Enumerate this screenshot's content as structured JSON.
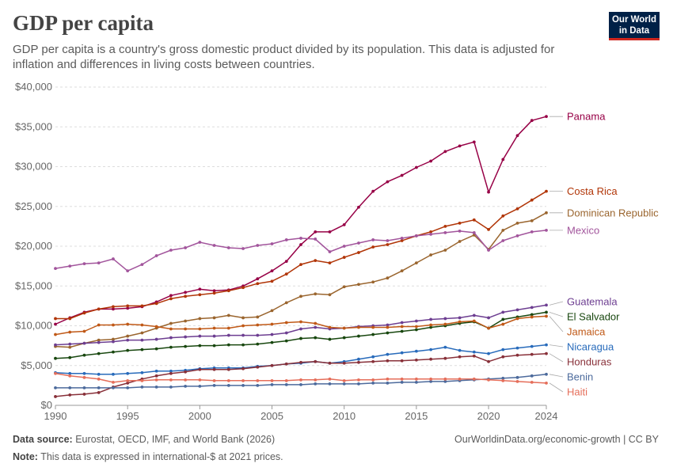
{
  "header": {
    "title": "GDP per capita",
    "subtitle": "GDP per capita is a country's gross domestic product divided by its population. This data is adjusted for inflation and differences in living costs between countries.",
    "logo_line1": "Our World",
    "logo_line2": "in Data"
  },
  "footer": {
    "source_label": "Data source:",
    "source_text": "Eurostat, OECD, IMF, and World Bank (2026)",
    "credit": "OurWorldinData.org/economic-growth | CC BY",
    "note_label": "Note:",
    "note_text": "This data is expressed in international-$ at 2021 prices."
  },
  "chart_data": {
    "type": "line",
    "x": [
      1990,
      1991,
      1992,
      1993,
      1994,
      1995,
      1996,
      1997,
      1998,
      1999,
      2000,
      2001,
      2002,
      2003,
      2004,
      2005,
      2006,
      2007,
      2008,
      2009,
      2010,
      2011,
      2012,
      2013,
      2014,
      2015,
      2016,
      2017,
      2018,
      2019,
      2020,
      2021,
      2022,
      2023,
      2024
    ],
    "xlim": [
      1990,
      2024
    ],
    "ylim": [
      0,
      40000
    ],
    "yticks": [
      0,
      5000,
      10000,
      15000,
      20000,
      25000,
      30000,
      35000,
      40000
    ],
    "yticklabels": [
      "$0",
      "$5,000",
      "$10,000",
      "$15,000",
      "$20,000",
      "$25,000",
      "$30,000",
      "$35,000",
      "$40,000"
    ],
    "xticks": [
      1990,
      1995,
      2000,
      2005,
      2010,
      2015,
      2020,
      2024
    ],
    "xticklabels": [
      "1990",
      "1995",
      "2000",
      "2005",
      "2010",
      "2015",
      "2020",
      "2024"
    ],
    "grid": "horizontal dashed",
    "legend": "labels at line ends, right",
    "series": [
      {
        "name": "Panama",
        "color": "#970046",
        "values": [
          10200,
          11000,
          11700,
          12100,
          12100,
          12200,
          12400,
          13000,
          13800,
          14200,
          14600,
          14400,
          14500,
          15000,
          15900,
          16900,
          18100,
          20200,
          21800,
          21800,
          22700,
          24900,
          26900,
          28100,
          28900,
          29900,
          30700,
          31900,
          32600,
          33100,
          26800,
          30900,
          33900,
          35800,
          36300
        ]
      },
      {
        "name": "Costa Rica",
        "color": "#b13507",
        "values": [
          10900,
          10900,
          11600,
          12100,
          12400,
          12500,
          12500,
          12800,
          13400,
          13700,
          13900,
          14100,
          14400,
          14800,
          15300,
          15600,
          16500,
          17700,
          18200,
          17900,
          18600,
          19200,
          19900,
          20200,
          20700,
          21300,
          21800,
          22500,
          22900,
          23300,
          22100,
          23800,
          24700,
          25800,
          26900
        ]
      },
      {
        "name": "Dominican Republic",
        "color": "#9a652e",
        "values": [
          7400,
          7300,
          7800,
          8200,
          8300,
          8700,
          9100,
          9700,
          10300,
          10600,
          10900,
          11000,
          11300,
          11000,
          11100,
          11900,
          12900,
          13700,
          14000,
          13900,
          14900,
          15200,
          15500,
          16000,
          16900,
          17900,
          18900,
          19500,
          20600,
          21400,
          19600,
          22000,
          22900,
          23200,
          24200
        ]
      },
      {
        "name": "Mexico",
        "color": "#a2559c",
        "values": [
          17200,
          17500,
          17800,
          17900,
          18400,
          16900,
          17700,
          18800,
          19500,
          19800,
          20500,
          20100,
          19800,
          19700,
          20100,
          20300,
          20800,
          21000,
          20900,
          19300,
          20000,
          20400,
          20800,
          20700,
          21000,
          21300,
          21500,
          21700,
          21900,
          21700,
          19500,
          20700,
          21300,
          21800,
          22000
        ]
      },
      {
        "name": "Guatemala",
        "color": "#6d3e91",
        "values": [
          7600,
          7700,
          7800,
          7900,
          8000,
          8200,
          8200,
          8300,
          8500,
          8600,
          8700,
          8700,
          8800,
          8800,
          8800,
          8900,
          9100,
          9600,
          9800,
          9600,
          9700,
          9900,
          10000,
          10100,
          10400,
          10600,
          10800,
          10900,
          11000,
          11300,
          11000,
          11700,
          12000,
          12300,
          12600
        ]
      },
      {
        "name": "El Salvador",
        "color": "#18470f",
        "values": [
          5900,
          6000,
          6300,
          6500,
          6700,
          6900,
          7000,
          7100,
          7300,
          7400,
          7500,
          7500,
          7600,
          7600,
          7700,
          7900,
          8100,
          8400,
          8500,
          8300,
          8500,
          8700,
          8900,
          9100,
          9300,
          9500,
          9800,
          10000,
          10300,
          10500,
          9700,
          10800,
          11100,
          11400,
          11700
        ]
      },
      {
        "name": "Jamaica",
        "color": "#c05917",
        "values": [
          8900,
          9200,
          9300,
          10100,
          10100,
          10200,
          10100,
          9900,
          9600,
          9600,
          9600,
          9700,
          9700,
          10000,
          10100,
          10200,
          10400,
          10500,
          10300,
          9800,
          9700,
          9800,
          9800,
          9800,
          9900,
          9900,
          10100,
          10200,
          10500,
          10600,
          9700,
          10200,
          10900,
          11100,
          11200
        ]
      },
      {
        "name": "Nicaragua",
        "color": "#286bbb",
        "values": [
          4100,
          4000,
          4000,
          3900,
          3900,
          4000,
          4100,
          4300,
          4300,
          4400,
          4600,
          4700,
          4700,
          4700,
          4900,
          5000,
          5200,
          5300,
          5500,
          5300,
          5500,
          5800,
          6100,
          6400,
          6600,
          6800,
          7000,
          7300,
          6900,
          6700,
          6500,
          7000,
          7200,
          7400,
          7600
        ]
      },
      {
        "name": "Honduras",
        "color": "#883039",
        "values": [
          1100,
          1300,
          1400,
          1600,
          2300,
          2800,
          3300,
          3700,
          4000,
          4200,
          4500,
          4500,
          4500,
          4600,
          4800,
          5000,
          5200,
          5400,
          5500,
          5300,
          5300,
          5400,
          5500,
          5600,
          5600,
          5700,
          5800,
          5900,
          6100,
          6200,
          5500,
          6100,
          6300,
          6400,
          6500
        ]
      },
      {
        "name": "Benin",
        "color": "#4c6a9c",
        "values": [
          2200,
          2200,
          2200,
          2200,
          2200,
          2200,
          2300,
          2300,
          2300,
          2400,
          2400,
          2500,
          2500,
          2500,
          2500,
          2600,
          2600,
          2600,
          2700,
          2700,
          2700,
          2700,
          2800,
          2800,
          2900,
          2900,
          3000,
          3000,
          3100,
          3200,
          3300,
          3400,
          3500,
          3700,
          3900
        ]
      },
      {
        "name": "Haiti",
        "color": "#e56e5a",
        "values": [
          4000,
          3700,
          3500,
          3300,
          2900,
          3100,
          3100,
          3200,
          3200,
          3200,
          3200,
          3100,
          3100,
          3100,
          3100,
          3100,
          3100,
          3200,
          3200,
          3300,
          3100,
          3200,
          3200,
          3300,
          3300,
          3300,
          3300,
          3300,
          3300,
          3300,
          3200,
          3100,
          3000,
          2900,
          2800
        ]
      }
    ]
  }
}
